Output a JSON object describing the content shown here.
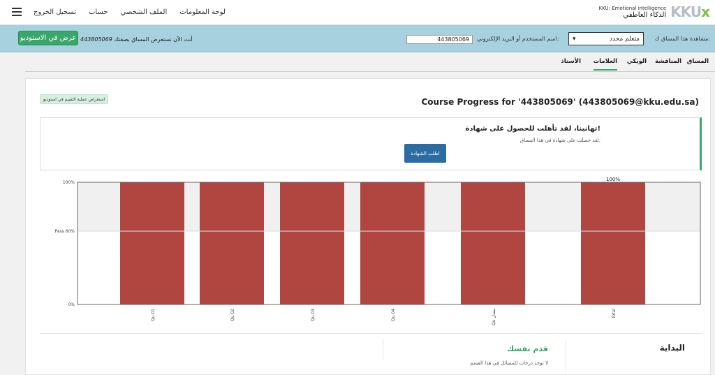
{
  "header": {
    "brand_sub": "KKU: Emotional intelligence",
    "brand_main": "الذكاء العاطفي",
    "logo_text": "KKU",
    "logo_x": "x",
    "nav": [
      "لوحة المعلومات",
      "الملف الشخصي",
      "حساب",
      "تسجيل الخروج"
    ]
  },
  "masquerade": {
    "studio_button": "عرض في الاستوديو",
    "viewing_text": "أنت الآن تستعرض المساق بصفتك",
    "viewing_user": "443805069",
    "username_label": "اسم المستخدم أو البريد الإلكتروني:",
    "username_value": "443805069",
    "role_label": "مشاهدة هذا المساق ك:",
    "role_value": "متعلم محدد"
  },
  "tabs": [
    "المساق",
    "المناقشة",
    "الويكي",
    "العلامات",
    "الأستاذ"
  ],
  "active_tab": "العلامات",
  "progress": {
    "staff_button": "استعراض عملية التقييم في استوديو",
    "title": "Course Progress for '443805069' (443805069@kku.edu.sa)"
  },
  "certificate": {
    "heading": "تهانينا، لقد تأهلت للحصول على شهادة!",
    "text": "لقد حصلت على شهادة في هذا المساق.",
    "button": "اطلب الشهادة"
  },
  "chart_data": {
    "type": "bar",
    "categories": [
      "Qu 01",
      "Qu 02",
      "Qu 03",
      "Qu 04",
      "Qu معدل",
      "Total"
    ],
    "values": [
      100,
      100,
      100,
      100,
      100,
      100
    ],
    "ylim": [
      0,
      100
    ],
    "yticks": [
      {
        "value": 0,
        "label": "0%"
      },
      {
        "value": 60,
        "label": "Pass 60%"
      },
      {
        "value": 100,
        "label": "100%"
      }
    ],
    "pass_line": 60,
    "total_label": "100%",
    "bar_color": "#b14540",
    "band_color": "#f0f0f0",
    "grid": false
  },
  "sections": {
    "start": "البداية",
    "self": "قدم نفسك",
    "no_grades": "لا توجد درجات للمسائل في هذا القسم"
  }
}
